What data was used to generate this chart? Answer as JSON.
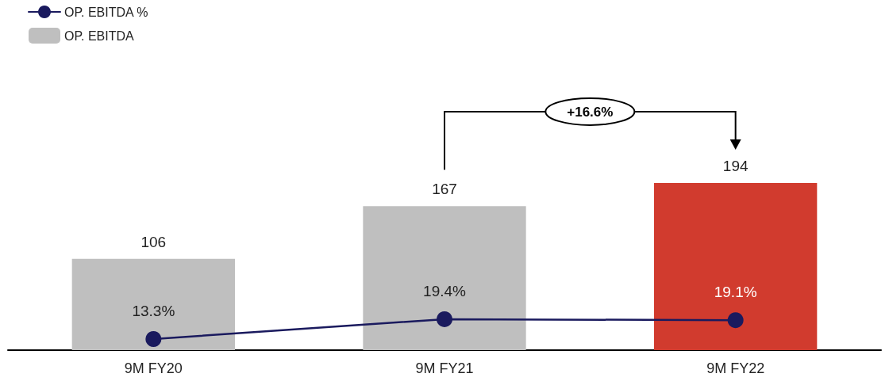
{
  "chart_data": {
    "type": "bar",
    "categories": [
      "9M FY20",
      "9M FY21",
      "9M FY22"
    ],
    "series": [
      {
        "name": "OP. EBITDA",
        "color": "#bfbfbf",
        "colors": [
          "#bfbfbf",
          "#bfbfbf",
          "#d13b2e"
        ],
        "values": [
          106,
          167,
          194
        ],
        "value_labels": [
          "106",
          "167",
          "194"
        ]
      },
      {
        "name": "OP. EBITDA %",
        "type": "line",
        "axis": "y2",
        "color": "#1a1a5e",
        "values": [
          13.3,
          19.4,
          19.1
        ],
        "value_labels": [
          "13.3%",
          "19.4%",
          "19.1%"
        ]
      }
    ],
    "marker": "circle",
    "line_style": "solid",
    "legend": "top left",
    "grid": false,
    "tick_labels": "x",
    "annotations": [
      "+16.6%"
    ]
  }
}
